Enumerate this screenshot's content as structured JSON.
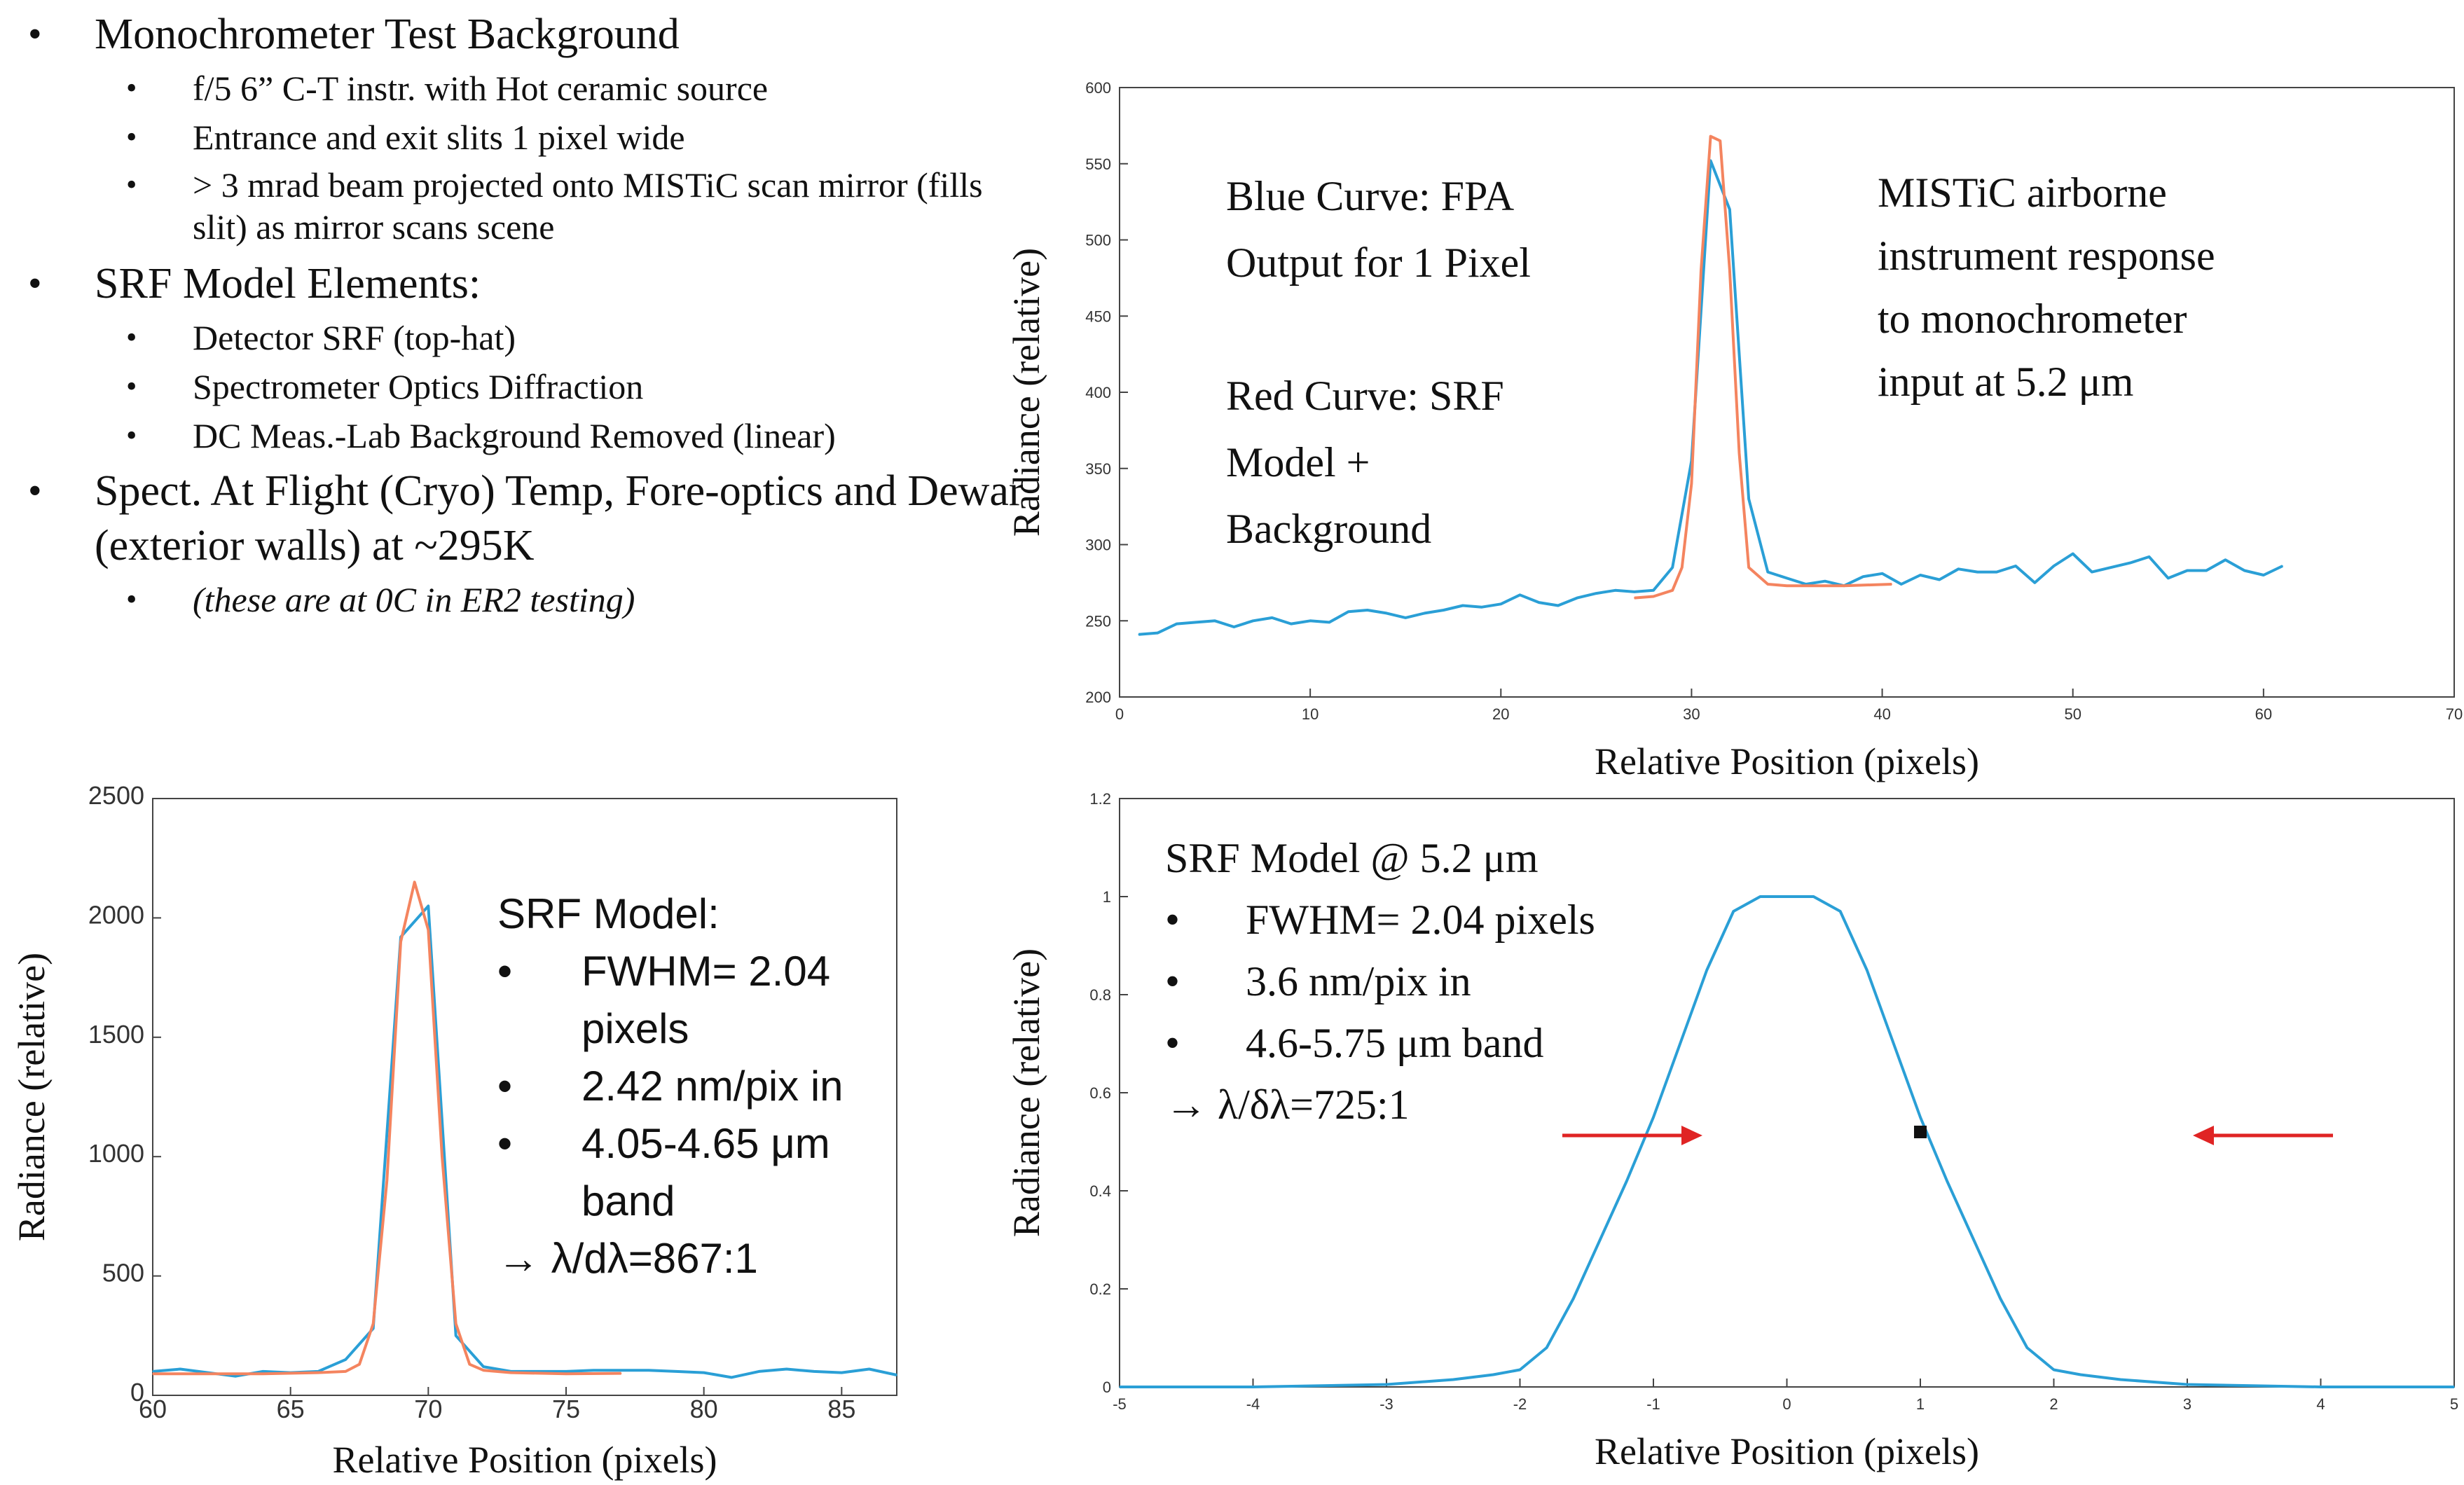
{
  "bullets": {
    "b1": "Monochrometer  Test Background",
    "b1_sub": [
      "f/5 6” C-T instr. with Hot ceramic source",
      "Entrance and exit slits 1 pixel wide",
      "> 3 mrad beam projected onto MISTiC scan mirror (fills slit) as mirror scans scene"
    ],
    "b2": "SRF Model Elements:",
    "b2_sub": [
      "Detector SRF (top-hat)",
      "Spectrometer  Optics Diffraction",
      "DC Meas.-Lab Background Removed  (linear)"
    ],
    "b3": "Spect. At Flight (Cryo) Temp,  Fore-optics and Dewar (exterior walls)  at ~295K",
    "b3_sub": [
      "(these are at 0C in ER2 testing)"
    ]
  },
  "colors": {
    "blue": "#2a9fd6",
    "orange": "#f4845f",
    "arrow": "#e02424",
    "axis": "#444444"
  },
  "chart_data": [
    {
      "id": "top-right",
      "type": "line",
      "xlabel": "Relative Position (pixels)",
      "ylabel": "Radiance (relative)",
      "xlim": [
        0,
        70
      ],
      "ylim": [
        200,
        600
      ],
      "xticks": [
        0,
        10,
        20,
        30,
        40,
        50,
        60,
        70
      ],
      "yticks": [
        200,
        250,
        300,
        350,
        400,
        450,
        500,
        550,
        600
      ],
      "annotations": [
        [
          "Blue Curve: FPA",
          "Output for 1 Pixel",
          "",
          "Red Curve: SRF",
          "Model +",
          "Background"
        ],
        [
          "MISTiC airborne",
          "instrument response",
          "to monochrometer",
          "input at 5.2 μm"
        ]
      ],
      "series": [
        {
          "color": "blue",
          "x": [
            1,
            2,
            3,
            4,
            5,
            6,
            7,
            8,
            9,
            10,
            11,
            12,
            13,
            14,
            15,
            16,
            17,
            18,
            19,
            20,
            21,
            22,
            23,
            24,
            25,
            26,
            27,
            28,
            29,
            30,
            31,
            32,
            33,
            34,
            35,
            36,
            37,
            38,
            39,
            40,
            41,
            42,
            43,
            44,
            45,
            46,
            47,
            48,
            49,
            50,
            51,
            52,
            53,
            54,
            55,
            56,
            57,
            58,
            59,
            60,
            61
          ],
          "y": [
            241,
            242,
            248,
            249,
            250,
            246,
            250,
            252,
            248,
            250,
            249,
            256,
            257,
            255,
            252,
            255,
            257,
            260,
            259,
            261,
            267,
            262,
            260,
            265,
            268,
            270,
            269,
            270,
            285,
            355,
            552,
            520,
            330,
            282,
            278,
            274,
            276,
            273,
            279,
            281,
            274,
            280,
            277,
            284,
            282,
            282,
            286,
            275,
            286,
            294,
            282,
            285,
            288,
            292,
            278,
            283,
            283,
            290,
            283,
            280,
            286
          ]
        },
        {
          "color": "orange",
          "x": [
            27,
            28,
            29,
            29.5,
            30,
            30.5,
            31,
            31.5,
            32,
            32.5,
            33,
            34,
            35,
            36,
            38,
            40.5
          ],
          "y": [
            265,
            266,
            270,
            285,
            340,
            480,
            568,
            565,
            480,
            360,
            285,
            274,
            273,
            273,
            273,
            274
          ]
        }
      ]
    },
    {
      "id": "bottom-left",
      "type": "line",
      "xlabel": "Relative Position (pixels)",
      "ylabel": "Radiance (relative)",
      "xlim": [
        60,
        87
      ],
      "ylim": [
        0,
        2500
      ],
      "xticks": [
        60,
        65,
        70,
        75,
        80,
        85
      ],
      "yticks": [
        0,
        500,
        1000,
        1500,
        2000,
        2500
      ],
      "annotations": [
        [
          "SRF Model:",
          "•",
          "FWHM= 2.04",
          "pixels",
          "•",
          "2.42 nm/pix in",
          "4.05-4.65 μm",
          "band",
          "→ λ/dλ=867:1"
        ]
      ],
      "series": [
        {
          "color": "blue",
          "x": [
            60,
            61,
            63,
            64,
            65,
            66,
            67,
            68,
            69,
            70,
            71,
            72,
            73,
            75,
            76,
            77,
            78,
            79,
            80,
            81,
            82,
            83,
            84,
            85,
            86,
            87
          ],
          "y": [
            100,
            110,
            80,
            100,
            95,
            100,
            150,
            280,
            1920,
            2050,
            250,
            120,
            100,
            100,
            105,
            105,
            105,
            100,
            95,
            75,
            100,
            110,
            100,
            95,
            110,
            85
          ]
        },
        {
          "color": "orange",
          "x": [
            60,
            62,
            64,
            66,
            67,
            67.5,
            68,
            68.5,
            69,
            69.5,
            70,
            70.5,
            71,
            71.5,
            72,
            73,
            75,
            77
          ],
          "y": [
            90,
            90,
            90,
            95,
            100,
            130,
            300,
            900,
            1900,
            2150,
            1950,
            1000,
            300,
            130,
            105,
            95,
            90,
            92
          ]
        }
      ]
    },
    {
      "id": "bottom-right",
      "type": "line",
      "xlabel": "Relative Position (pixels)",
      "ylabel": "Radiance (relative)",
      "xlim": [
        -5,
        5
      ],
      "ylim": [
        0,
        1.2
      ],
      "xticks": [
        -5,
        -4,
        -3,
        -2,
        -1,
        0,
        1,
        2,
        3,
        4,
        5
      ],
      "yticks": [
        0,
        0.2,
        0.4,
        0.6,
        0.8,
        1,
        1.2
      ],
      "annotations": [
        [
          "SRF Model @ 5.2 μm",
          "FWHM= 2.04 pixels",
          "3.6 nm/pix in",
          "4.6-5.75 μm band",
          "→ λ/δλ=725:1"
        ]
      ],
      "marker": [
        1.0,
        0.52
      ],
      "series": [
        {
          "color": "blue",
          "x": [
            -5,
            -4,
            -3,
            -2.5,
            -2.2,
            -2,
            -1.8,
            -1.6,
            -1.4,
            -1.2,
            -1,
            -0.8,
            -0.6,
            -0.4,
            -0.2,
            0,
            0.2,
            0.4,
            0.6,
            0.8,
            1,
            1.2,
            1.4,
            1.6,
            1.8,
            2,
            2.2,
            2.5,
            3,
            4,
            5
          ],
          "y": [
            0,
            0,
            0.005,
            0.015,
            0.025,
            0.035,
            0.08,
            0.18,
            0.3,
            0.42,
            0.55,
            0.7,
            0.85,
            0.97,
            1.0,
            1.0,
            1.0,
            0.97,
            0.85,
            0.7,
            0.55,
            0.42,
            0.3,
            0.18,
            0.08,
            0.035,
            0.025,
            0.015,
            0.005,
            0,
            0
          ]
        }
      ]
    }
  ]
}
